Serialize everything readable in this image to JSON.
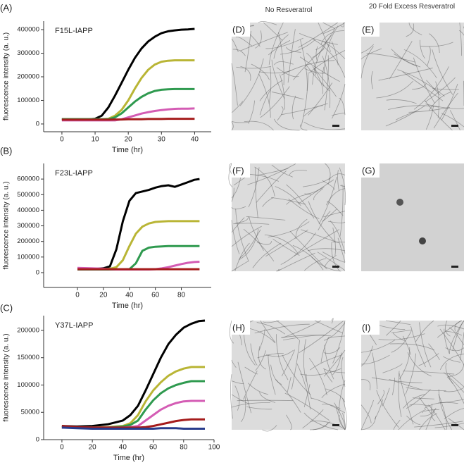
{
  "chart_data": [
    {
      "type": "line",
      "label": "(A)",
      "title": "F15L-IAPP",
      "xlabel": "Time (hr)",
      "ylabel": "fluorescence intensity (a. u.)",
      "xlim": [
        -5.5,
        45
      ],
      "xticks": [
        0,
        10,
        20,
        30,
        40
      ],
      "ylim": [
        -33000,
        436000
      ],
      "yticks": [
        0,
        100000,
        200000,
        300000,
        400000
      ],
      "x": [
        0,
        2,
        4,
        6,
        8,
        10,
        12,
        14,
        16,
        18,
        20,
        22,
        24,
        26,
        28,
        30,
        32,
        34,
        36,
        38,
        40
      ],
      "series": [
        {
          "color": "#000000",
          "values": [
            20000,
            20000,
            20000,
            20000,
            20000,
            22000,
            35000,
            70000,
            120000,
            175000,
            230000,
            280000,
            320000,
            350000,
            370000,
            385000,
            393000,
            397000,
            400000,
            401000,
            403000
          ]
        },
        {
          "color": "#b9b535",
          "values": [
            20000,
            20000,
            20000,
            20000,
            20000,
            20000,
            20000,
            22000,
            35000,
            60000,
            100000,
            150000,
            195000,
            230000,
            252000,
            264000,
            268000,
            270000,
            270000,
            270000,
            270000
          ]
        },
        {
          "color": "#2f9a4f",
          "values": [
            20000,
            20000,
            20000,
            20000,
            20000,
            20000,
            20000,
            20000,
            28000,
            45000,
            70000,
            95000,
            115000,
            130000,
            140000,
            145000,
            147000,
            148000,
            148000,
            148000,
            148000
          ]
        },
        {
          "color": "#d45cb4",
          "values": [
            15000,
            15000,
            15000,
            15000,
            15000,
            15000,
            15000,
            15000,
            15000,
            20000,
            28000,
            36000,
            44000,
            50000,
            55000,
            59000,
            62000,
            64000,
            65000,
            65000,
            66000
          ]
        },
        {
          "color": "#a51c1c",
          "values": [
            18000,
            18000,
            18000,
            18000,
            18000,
            18000,
            18000,
            18000,
            19000,
            19000,
            20000,
            20000,
            20000,
            21000,
            21000,
            21000,
            22000,
            22000,
            22000,
            22000,
            22000
          ]
        }
      ]
    },
    {
      "type": "line",
      "label": "(B)",
      "title": "F23L-IAPP",
      "xlabel": "Time (hr)",
      "ylabel": "fluorescence intensity (a. u.)",
      "xlim": [
        -26,
        103
      ],
      "xticks": [
        0,
        20,
        40,
        60,
        80
      ],
      "ylim": [
        -95000,
        700000
      ],
      "yticks": [
        0,
        100000,
        200000,
        300000,
        400000,
        500000,
        600000
      ],
      "x": [
        0,
        10,
        20,
        25,
        30,
        35,
        40,
        45,
        50,
        55,
        60,
        65,
        70,
        75,
        80,
        85,
        90,
        94
      ],
      "series": [
        {
          "color": "#000000",
          "values": [
            20000,
            22000,
            28000,
            40000,
            150000,
            330000,
            460000,
            510000,
            520000,
            530000,
            545000,
            555000,
            560000,
            550000,
            565000,
            580000,
            595000,
            600000
          ]
        },
        {
          "color": "#b9b535",
          "values": [
            20000,
            20000,
            22000,
            25000,
            35000,
            80000,
            170000,
            250000,
            295000,
            315000,
            325000,
            328000,
            330000,
            330000,
            330000,
            330000,
            330000,
            330000
          ]
        },
        {
          "color": "#2f9a4f",
          "values": [
            20000,
            20000,
            20000,
            20000,
            20000,
            20000,
            22000,
            60000,
            140000,
            160000,
            166000,
            168000,
            170000,
            170000,
            170000,
            170000,
            170000,
            170000
          ]
        },
        {
          "color": "#d45cb4",
          "values": [
            30000,
            28000,
            25000,
            22000,
            20000,
            20000,
            20000,
            20000,
            20000,
            20000,
            22000,
            28000,
            35000,
            45000,
            55000,
            63000,
            68000,
            70000
          ]
        },
        {
          "color": "#a51c1c",
          "values": [
            22000,
            22000,
            22000,
            22000,
            22000,
            22000,
            22000,
            22000,
            22000,
            22000,
            22000,
            22000,
            22000,
            22000,
            22000,
            22000,
            22000,
            22000
          ]
        }
      ]
    },
    {
      "type": "line",
      "label": "(C)",
      "title": "Y37L-IAPP",
      "xlabel": "Time (hr)",
      "ylabel": "fluorescence intensity (a. u.)",
      "xlim": [
        -12,
        100
      ],
      "xticks": [
        0,
        20,
        40,
        60,
        80,
        100
      ],
      "ylim": [
        0,
        227000
      ],
      "yticks": [
        0,
        50000,
        100000,
        150000,
        200000
      ],
      "x": [
        0,
        10,
        20,
        30,
        40,
        45,
        50,
        55,
        60,
        65,
        70,
        75,
        80,
        85,
        90,
        94
      ],
      "series": [
        {
          "color": "#000000",
          "values": [
            25000,
            24000,
            25000,
            28000,
            35000,
            45000,
            62000,
            90000,
            120000,
            150000,
            175000,
            192000,
            205000,
            212000,
            217000,
            218000
          ]
        },
        {
          "color": "#b9b535",
          "values": [
            22000,
            22000,
            22000,
            23000,
            25000,
            30000,
            45000,
            70000,
            90000,
            105000,
            117000,
            125000,
            130000,
            133000,
            133000,
            133000
          ]
        },
        {
          "color": "#2f9a4f",
          "values": [
            22000,
            22000,
            22000,
            22000,
            24000,
            27000,
            35000,
            55000,
            72000,
            85000,
            94000,
            100000,
            104000,
            107000,
            107000,
            107000
          ]
        },
        {
          "color": "#d45cb4",
          "values": [
            22000,
            22000,
            22000,
            22000,
            22000,
            23000,
            25000,
            35000,
            45000,
            55000,
            62000,
            67000,
            70000,
            71000,
            71000,
            71000
          ]
        },
        {
          "color": "#a51c1c",
          "values": [
            25000,
            23000,
            22000,
            22000,
            22000,
            22000,
            22000,
            23000,
            25000,
            28000,
            31000,
            34000,
            36000,
            37000,
            37000,
            37000
          ]
        },
        {
          "color": "#283c8c",
          "values": [
            22000,
            21000,
            20000,
            20000,
            20000,
            20000,
            20000,
            20000,
            20000,
            21000,
            21000,
            21000,
            20000,
            20000,
            20000,
            20000
          ]
        }
      ]
    }
  ],
  "panels": {
    "headers": [
      "No Resveratrol",
      "20 Fold Excess Resveratrol"
    ],
    "images": [
      {
        "label": "(D)"
      },
      {
        "label": "(E)"
      },
      {
        "label": "(F)"
      },
      {
        "label": "(G)"
      },
      {
        "label": "(H)"
      },
      {
        "label": "(I)"
      }
    ]
  }
}
